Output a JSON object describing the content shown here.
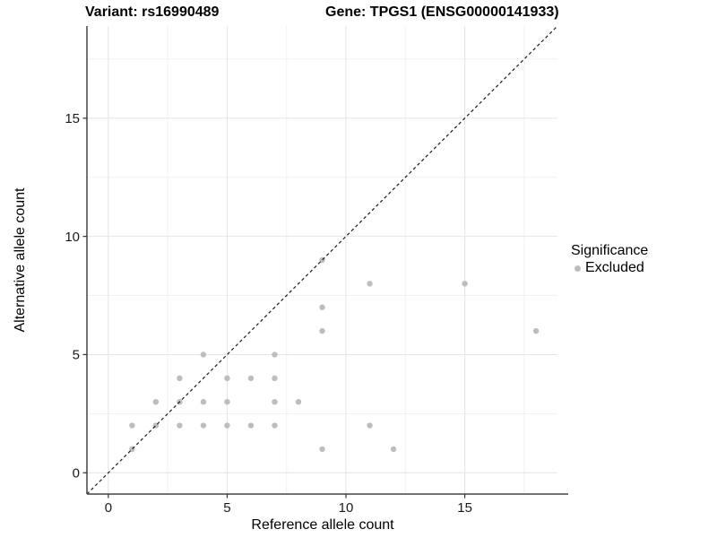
{
  "header": {
    "variant_title": "Variant: rs16990489",
    "gene_title": "Gene: TPGS1 (ENSG00000141933)"
  },
  "chart_data": {
    "type": "scatter",
    "xlabel": "Reference allele count",
    "ylabel": "Alternative allele count",
    "xlim": [
      -0.9,
      18.9
    ],
    "ylim": [
      -0.9,
      18.9
    ],
    "x_ticks": [
      0,
      5,
      10,
      15
    ],
    "y_ticks": [
      0,
      5,
      10,
      15
    ],
    "x_minor_ticks": [
      2.5,
      7.5,
      12.5,
      17.5
    ],
    "y_minor_ticks": [
      2.5,
      7.5,
      12.5,
      17.5
    ],
    "grid": "major and minor gridlines, light gray on white",
    "identity_line": {
      "slope": 1,
      "intercept": 0,
      "style": "dashed",
      "color": "#1a1a1a"
    },
    "legend": {
      "title": "Significance",
      "position": "right",
      "items": [
        {
          "label": "Excluded",
          "color": "#bdbdbd"
        }
      ]
    },
    "series": [
      {
        "name": "Excluded",
        "color": "#bdbdbd",
        "marker": "circle",
        "points": [
          [
            1,
            1
          ],
          [
            1,
            2
          ],
          [
            2,
            2
          ],
          [
            2,
            3
          ],
          [
            3,
            2
          ],
          [
            3,
            3
          ],
          [
            3,
            4
          ],
          [
            4,
            2
          ],
          [
            4,
            3
          ],
          [
            4,
            5
          ],
          [
            5,
            2
          ],
          [
            5,
            3
          ],
          [
            5,
            4
          ],
          [
            6,
            2
          ],
          [
            6,
            4
          ],
          [
            7,
            2
          ],
          [
            7,
            3
          ],
          [
            7,
            4
          ],
          [
            7,
            5
          ],
          [
            8,
            3
          ],
          [
            9,
            1
          ],
          [
            9,
            6
          ],
          [
            9,
            7
          ],
          [
            9,
            9
          ],
          [
            11,
            2
          ],
          [
            11,
            8
          ],
          [
            12,
            1
          ],
          [
            15,
            8
          ],
          [
            18,
            6
          ]
        ]
      }
    ]
  }
}
